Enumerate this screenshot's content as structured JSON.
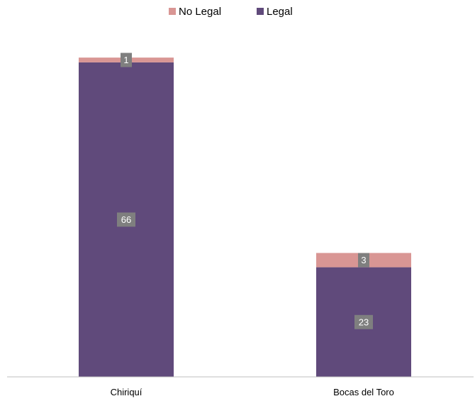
{
  "chart_data": {
    "type": "bar",
    "stacked": true,
    "categories": [
      "Chiriquí",
      "Bocas del Toro"
    ],
    "series": [
      {
        "name": "Legal",
        "values": [
          66,
          23
        ],
        "color": "#604a7b"
      },
      {
        "name": "No Legal",
        "values": [
          1,
          3
        ],
        "color": "#d99694"
      }
    ],
    "legend": {
      "position": "top",
      "order": [
        "No Legal",
        "Legal"
      ]
    },
    "data_labels": {
      "shown": true,
      "background": "#7f7f7f",
      "color": "#ffffff"
    },
    "ylim": [
      0,
      70
    ],
    "grid": false,
    "y_axis_visible": false,
    "axis_color": "#bfbfbf"
  }
}
